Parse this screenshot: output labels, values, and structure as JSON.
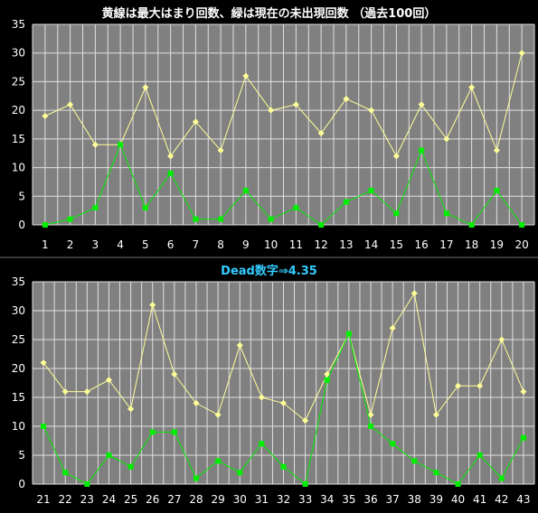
{
  "chart_data": [
    {
      "type": "line",
      "title": "黄線は最大はまり回数、緑は現在の未出現回数 （過去100回）",
      "categories": [
        "1",
        "2",
        "3",
        "4",
        "5",
        "6",
        "7",
        "8",
        "9",
        "10",
        "11",
        "12",
        "13",
        "14",
        "15",
        "16",
        "17",
        "18",
        "19",
        "20"
      ],
      "series": [
        {
          "color": "#ffff99",
          "values": [
            19,
            21,
            14,
            14,
            24,
            12,
            18,
            13,
            26,
            20,
            21,
            16,
            22,
            20,
            12,
            21,
            15,
            24,
            13,
            30
          ]
        },
        {
          "color": "#00ee00",
          "values": [
            0,
            1,
            3,
            14,
            3,
            9,
            1,
            1,
            6,
            1,
            3,
            0,
            4,
            6,
            2,
            13,
            2,
            0,
            6,
            0
          ]
        }
      ],
      "ylim": [
        0,
        35
      ],
      "yticks": [
        "35",
        "30",
        "25",
        "20",
        "15",
        "10",
        "5",
        "0"
      ],
      "grid": true
    },
    {
      "type": "line",
      "title": "Dead数字⇒4.35",
      "categories": [
        "21",
        "22",
        "23",
        "24",
        "25",
        "26",
        "27",
        "28",
        "29",
        "30",
        "31",
        "32",
        "33",
        "34",
        "35",
        "36",
        "37",
        "38",
        "39",
        "40",
        "41",
        "42",
        "43"
      ],
      "series": [
        {
          "color": "#ffff99",
          "values": [
            21,
            16,
            16,
            18,
            13,
            31,
            19,
            14,
            12,
            24,
            15,
            14,
            11,
            19,
            26,
            12,
            27,
            33,
            12,
            17,
            17,
            25,
            16
          ]
        },
        {
          "color": "#00ee00",
          "values": [
            10,
            2,
            0,
            5,
            3,
            9,
            9,
            1,
            4,
            2,
            7,
            3,
            0,
            18,
            26,
            10,
            7,
            4,
            2,
            0,
            5,
            1,
            8
          ]
        }
      ],
      "ylim": [
        0,
        35
      ],
      "yticks": [
        "35",
        "30",
        "25",
        "20",
        "15",
        "10",
        "5",
        "0"
      ],
      "grid": true
    }
  ],
  "colors": {
    "background": "#000000",
    "plot": "#808080",
    "grid": "#e0e0e0",
    "title1": "#ffffff",
    "title2": "#33ccff"
  }
}
